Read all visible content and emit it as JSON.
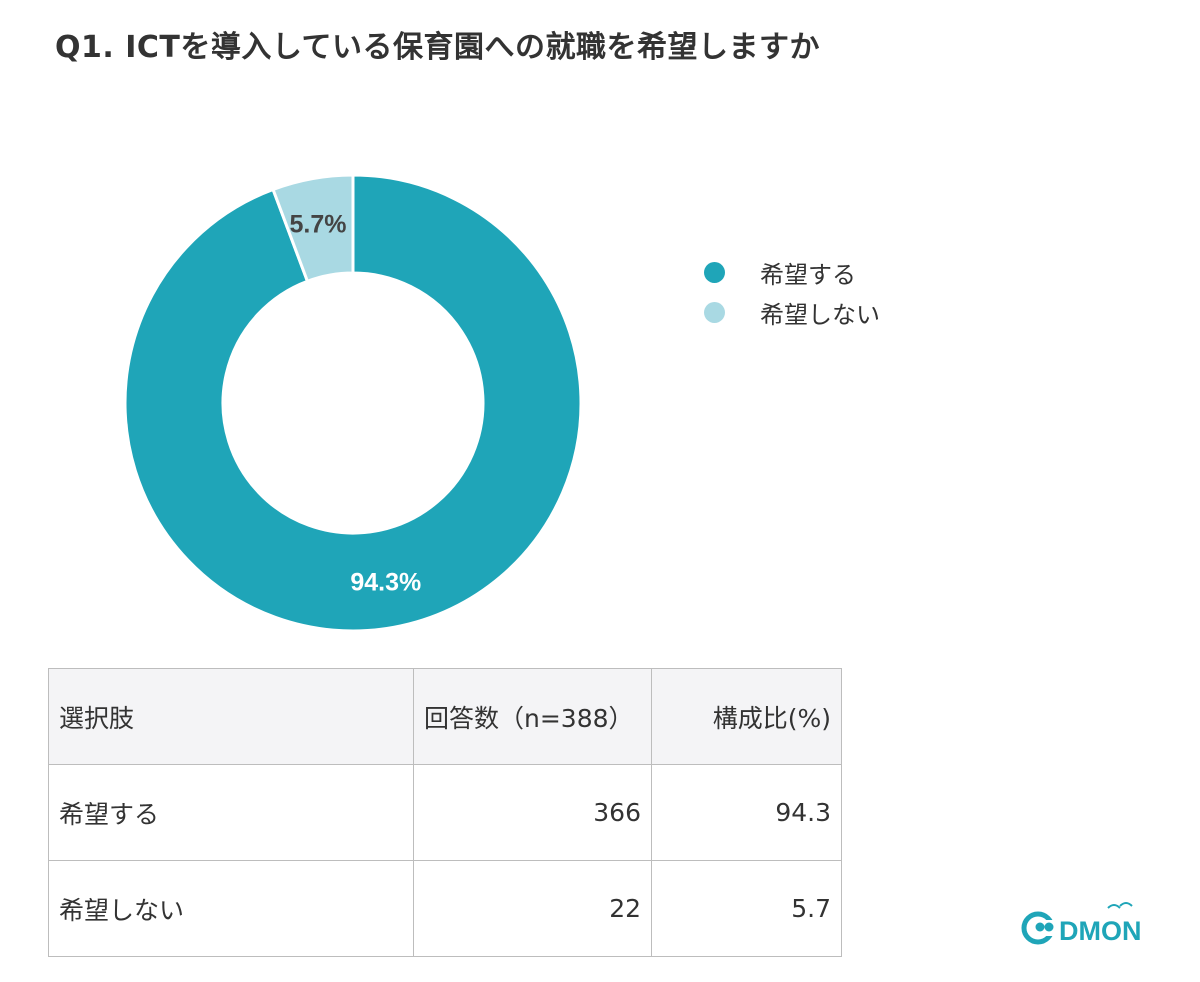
{
  "title": "Q1. ICTを導入している保育園への就職を希望しますか",
  "chart_data": {
    "type": "pie",
    "donut": true,
    "categories": [
      "希望する",
      "希望しない"
    ],
    "values": [
      94.3,
      5.7
    ],
    "labels": [
      "94.3%",
      "5.7%"
    ],
    "colors": [
      "#1fa5b8",
      "#a9d9e3"
    ],
    "label_colors": [
      "#ffffff",
      "#444444"
    ],
    "legend": "right",
    "title": "Q1. ICTを導入している保育園への就職を希望しますか"
  },
  "legend": {
    "items": [
      {
        "label": "希望する",
        "color": "#1fa5b8"
      },
      {
        "label": "希望しない",
        "color": "#a9d9e3"
      }
    ]
  },
  "table": {
    "headers": [
      "選択肢",
      "回答数（n=388）",
      "構成比(%)"
    ],
    "rows": [
      [
        "希望する",
        "366",
        "94.3"
      ],
      [
        "希望しない",
        "22",
        "5.7"
      ]
    ]
  },
  "logo": {
    "text": "CODMON"
  }
}
